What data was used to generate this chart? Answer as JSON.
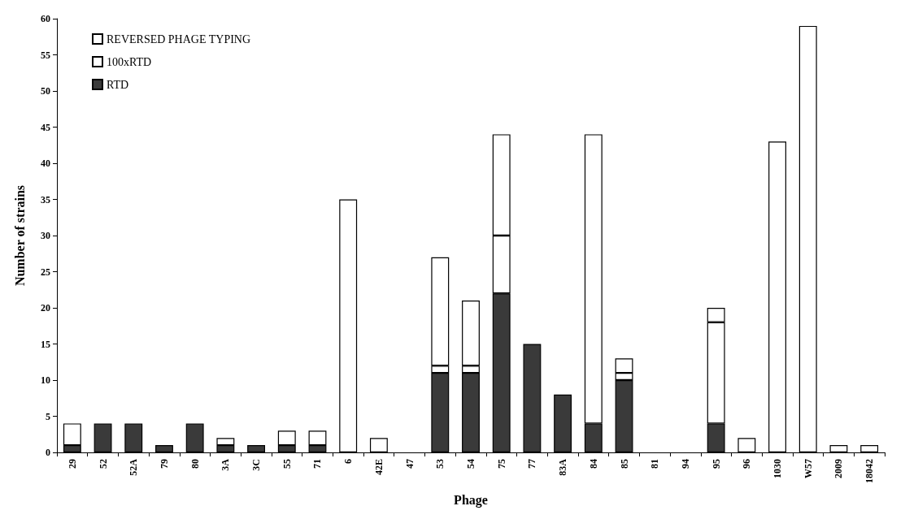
{
  "chart_data": {
    "type": "bar",
    "stacked": true,
    "xlabel": "Phage",
    "ylabel": "Number of strains",
    "categories": [
      "29",
      "52",
      "52A",
      "79",
      "80",
      "3A",
      "3C",
      "55",
      "71",
      "6",
      "42E",
      "47",
      "53",
      "54",
      "75",
      "77",
      "83A",
      "84",
      "85",
      "81",
      "94",
      "95",
      "96",
      "1030",
      "W57",
      "2009",
      "18042"
    ],
    "series": [
      {
        "name": "RTD",
        "color": "#3a3a3a",
        "values": [
          1,
          4,
          4,
          1,
          4,
          1,
          1,
          1,
          1,
          0,
          0,
          0,
          11,
          11,
          22,
          15,
          8,
          4,
          10,
          0,
          0,
          4,
          0,
          0,
          0,
          0,
          0
        ]
      },
      {
        "name": "100xRTD",
        "color": "#ffffff",
        "values": [
          3,
          0,
          0,
          0,
          0,
          1,
          0,
          2,
          2,
          35,
          2,
          0,
          1,
          1,
          8,
          0,
          0,
          40,
          1,
          0,
          0,
          14,
          2,
          43,
          59,
          1,
          1
        ]
      },
      {
        "name": "REVERSED PHAGE TYPING",
        "color": "#ffffff",
        "values": [
          0,
          0,
          0,
          0,
          0,
          0,
          0,
          0,
          0,
          0,
          0,
          0,
          15,
          9,
          14,
          0,
          0,
          0,
          2,
          0,
          0,
          2,
          0,
          0,
          0,
          0,
          0
        ]
      }
    ],
    "ylim": [
      0,
      60
    ],
    "yticks": [
      0,
      5,
      10,
      15,
      20,
      25,
      30,
      35,
      40,
      45,
      50,
      55,
      60
    ],
    "grid": false,
    "legend": "top left"
  }
}
